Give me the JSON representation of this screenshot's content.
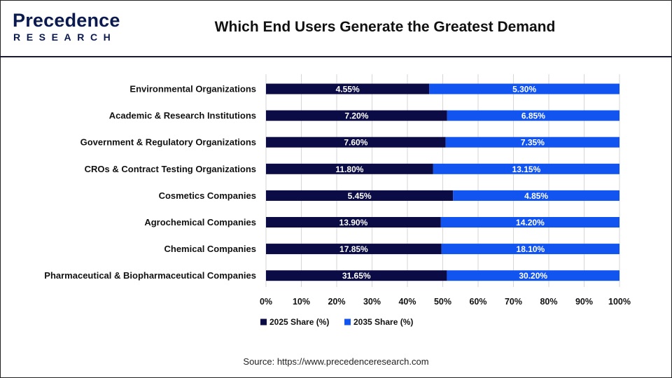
{
  "header": {
    "logo_top": "Precedence",
    "logo_bottom": "RESEARCH",
    "title": "Which End Users Generate the Greatest Demand"
  },
  "source": "Source: https://www.precedenceresearch.com",
  "colors": {
    "series_2025": "#0b0b45",
    "series_2035": "#1254f0",
    "grid": "#d6d6d6"
  },
  "chart_data": {
    "type": "bar",
    "orientation": "horizontal",
    "stacked": "percent",
    "title": "Which End Users Generate the Greatest Demand",
    "categories": [
      "Environmental Organizations",
      "Academic & Research Institutions",
      "Government & Regulatory Organizations",
      "CROs & Contract Testing Organizations",
      "Cosmetics Companies",
      "Agrochemical Companies",
      "Chemical Companies",
      "Pharmaceutical & Biopharmaceutical Companies"
    ],
    "series": [
      {
        "name": "2025 Share (%)",
        "values": [
          4.55,
          7.2,
          7.6,
          11.8,
          5.45,
          13.9,
          17.85,
          31.65
        ],
        "labels": [
          "4.55%",
          "7.20%",
          "7.60%",
          "11.80%",
          "5.45%",
          "13.90%",
          "17.85%",
          "31.65%"
        ]
      },
      {
        "name": "2035 Share (%)",
        "values": [
          5.3,
          6.85,
          7.35,
          13.15,
          4.85,
          14.2,
          18.1,
          30.2
        ],
        "labels": [
          "5.30%",
          "6.85%",
          "7.35%",
          "13.15%",
          "4.85%",
          "14.20%",
          "18.10%",
          "30.20%"
        ]
      }
    ],
    "xlim": [
      0,
      100
    ],
    "xticks": [
      "0%",
      "10%",
      "20%",
      "30%",
      "40%",
      "50%",
      "60%",
      "70%",
      "80%",
      "90%",
      "100%"
    ],
    "grid": true,
    "legend": "bottom"
  }
}
